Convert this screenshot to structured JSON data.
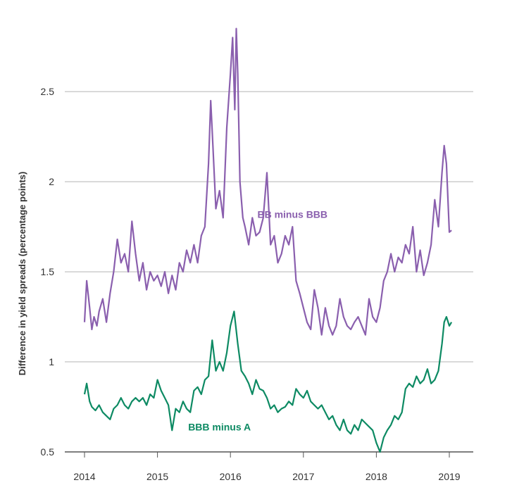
{
  "chart_data": {
    "type": "line",
    "title": "",
    "xlabel": "",
    "ylabel": "Difference in yield spreads (percentage points)",
    "xlim": [
      2014,
      2019.25
    ],
    "ylim": [
      0.5,
      2.95
    ],
    "x_ticks": [
      "2014",
      "2015",
      "2016",
      "2017",
      "2018",
      "2019"
    ],
    "y_ticks": [
      "0.5",
      "1",
      "1.5",
      "2",
      "2.5"
    ],
    "grid": "horizontal",
    "legend": "inline labels",
    "series": [
      {
        "name": "BB minus BBB",
        "color": "#8a5fae",
        "label_at": [
          2016.85,
          1.8
        ],
        "x": [
          2014.0,
          2014.03,
          2014.07,
          2014.1,
          2014.13,
          2014.17,
          2014.2,
          2014.25,
          2014.3,
          2014.35,
          2014.4,
          2014.45,
          2014.5,
          2014.55,
          2014.6,
          2014.65,
          2014.7,
          2014.75,
          2014.8,
          2014.85,
          2014.9,
          2014.95,
          2015.0,
          2015.05,
          2015.1,
          2015.15,
          2015.2,
          2015.25,
          2015.3,
          2015.35,
          2015.4,
          2015.45,
          2015.5,
          2015.55,
          2015.6,
          2015.65,
          2015.7,
          2015.73,
          2015.76,
          2015.8,
          2015.85,
          2015.9,
          2015.95,
          2016.0,
          2016.03,
          2016.06,
          2016.08,
          2016.1,
          2016.13,
          2016.17,
          2016.2,
          2016.25,
          2016.3,
          2016.35,
          2016.4,
          2016.45,
          2016.5,
          2016.55,
          2016.6,
          2016.65,
          2016.7,
          2016.75,
          2016.8,
          2016.85,
          2016.9,
          2016.95,
          2017.0,
          2017.05,
          2017.1,
          2017.15,
          2017.2,
          2017.25,
          2017.3,
          2017.35,
          2017.4,
          2017.45,
          2017.5,
          2017.55,
          2017.6,
          2017.65,
          2017.7,
          2017.75,
          2017.8,
          2017.85,
          2017.9,
          2017.95,
          2018.0,
          2018.05,
          2018.1,
          2018.15,
          2018.2,
          2018.25,
          2018.3,
          2018.35,
          2018.4,
          2018.45,
          2018.5,
          2018.55,
          2018.6,
          2018.65,
          2018.7,
          2018.75,
          2018.8,
          2018.85,
          2018.9,
          2018.93,
          2018.96,
          2019.0,
          2019.03
        ],
        "y": [
          1.22,
          1.45,
          1.3,
          1.18,
          1.25,
          1.2,
          1.28,
          1.35,
          1.22,
          1.38,
          1.5,
          1.68,
          1.55,
          1.6,
          1.5,
          1.78,
          1.6,
          1.45,
          1.55,
          1.4,
          1.5,
          1.45,
          1.48,
          1.42,
          1.5,
          1.38,
          1.48,
          1.4,
          1.55,
          1.5,
          1.62,
          1.55,
          1.65,
          1.55,
          1.7,
          1.75,
          2.1,
          2.45,
          2.2,
          1.85,
          1.95,
          1.8,
          2.3,
          2.6,
          2.8,
          2.4,
          2.85,
          2.6,
          2.0,
          1.8,
          1.75,
          1.65,
          1.8,
          1.7,
          1.72,
          1.8,
          2.05,
          1.65,
          1.7,
          1.55,
          1.6,
          1.7,
          1.65,
          1.75,
          1.45,
          1.38,
          1.3,
          1.22,
          1.18,
          1.4,
          1.3,
          1.15,
          1.3,
          1.2,
          1.15,
          1.2,
          1.35,
          1.25,
          1.2,
          1.18,
          1.22,
          1.25,
          1.2,
          1.15,
          1.35,
          1.25,
          1.22,
          1.3,
          1.45,
          1.5,
          1.6,
          1.5,
          1.58,
          1.55,
          1.65,
          1.6,
          1.75,
          1.5,
          1.62,
          1.48,
          1.55,
          1.65,
          1.9,
          1.75,
          2.05,
          2.2,
          2.1,
          1.72,
          1.73
        ]
      },
      {
        "name": "BBB minus A",
        "color": "#0d8a63",
        "label_at": [
          2015.85,
          0.62
        ],
        "x": [
          2014.0,
          2014.03,
          2014.07,
          2014.1,
          2014.15,
          2014.2,
          2014.25,
          2014.3,
          2014.35,
          2014.4,
          2014.45,
          2014.5,
          2014.55,
          2014.6,
          2014.65,
          2014.7,
          2014.75,
          2014.8,
          2014.85,
          2014.9,
          2014.95,
          2015.0,
          2015.05,
          2015.1,
          2015.15,
          2015.2,
          2015.25,
          2015.3,
          2015.35,
          2015.4,
          2015.45,
          2015.5,
          2015.55,
          2015.6,
          2015.65,
          2015.7,
          2015.75,
          2015.8,
          2015.85,
          2015.9,
          2015.95,
          2016.0,
          2016.05,
          2016.1,
          2016.15,
          2016.2,
          2016.25,
          2016.3,
          2016.35,
          2016.4,
          2016.45,
          2016.5,
          2016.55,
          2016.6,
          2016.65,
          2016.7,
          2016.75,
          2016.8,
          2016.85,
          2016.9,
          2016.95,
          2017.0,
          2017.05,
          2017.1,
          2017.15,
          2017.2,
          2017.25,
          2017.3,
          2017.35,
          2017.4,
          2017.45,
          2017.5,
          2017.55,
          2017.6,
          2017.65,
          2017.7,
          2017.75,
          2017.8,
          2017.85,
          2017.9,
          2017.95,
          2018.0,
          2018.05,
          2018.1,
          2018.15,
          2018.2,
          2018.25,
          2018.3,
          2018.35,
          2018.4,
          2018.45,
          2018.5,
          2018.55,
          2018.6,
          2018.65,
          2018.7,
          2018.75,
          2018.8,
          2018.85,
          2018.9,
          2018.93,
          2018.96,
          2019.0,
          2019.03
        ],
        "y": [
          0.82,
          0.88,
          0.78,
          0.75,
          0.73,
          0.76,
          0.72,
          0.7,
          0.68,
          0.74,
          0.76,
          0.8,
          0.76,
          0.74,
          0.78,
          0.8,
          0.78,
          0.8,
          0.76,
          0.82,
          0.8,
          0.9,
          0.84,
          0.8,
          0.76,
          0.62,
          0.74,
          0.72,
          0.78,
          0.74,
          0.72,
          0.84,
          0.86,
          0.82,
          0.9,
          0.92,
          1.12,
          0.95,
          1.0,
          0.95,
          1.05,
          1.2,
          1.28,
          1.1,
          0.95,
          0.92,
          0.88,
          0.82,
          0.9,
          0.85,
          0.84,
          0.8,
          0.74,
          0.76,
          0.72,
          0.74,
          0.75,
          0.78,
          0.76,
          0.85,
          0.82,
          0.8,
          0.84,
          0.78,
          0.76,
          0.74,
          0.76,
          0.72,
          0.68,
          0.7,
          0.65,
          0.62,
          0.68,
          0.62,
          0.6,
          0.65,
          0.62,
          0.68,
          0.66,
          0.64,
          0.62,
          0.55,
          0.5,
          0.58,
          0.62,
          0.65,
          0.7,
          0.68,
          0.72,
          0.85,
          0.88,
          0.86,
          0.92,
          0.88,
          0.9,
          0.96,
          0.88,
          0.9,
          0.95,
          1.1,
          1.22,
          1.25,
          1.2,
          1.22
        ]
      }
    ]
  }
}
